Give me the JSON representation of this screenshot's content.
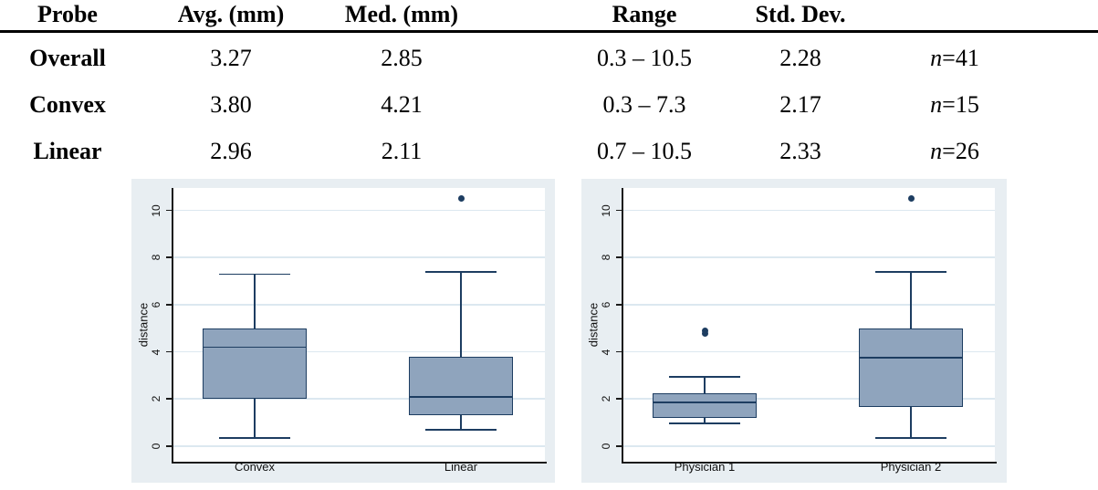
{
  "table": {
    "headers": {
      "probe": "Probe",
      "avg": "Avg. (mm)",
      "med": "Med. (mm)",
      "range": "Range",
      "std": "Std. Dev."
    },
    "rows": [
      {
        "probe": "Overall",
        "avg": "3.27",
        "med": "2.85",
        "range": "0.3 – 10.5",
        "std": "2.28",
        "n_var": "n",
        "n_eq": "=41"
      },
      {
        "probe": "Convex",
        "avg": "3.80",
        "med": "4.21",
        "range": "0.3 – 7.3",
        "std": "2.17",
        "n_var": "n",
        "n_eq": "=15"
      },
      {
        "probe": "Linear",
        "avg": "2.96",
        "med": "2.11",
        "range": "0.7 – 10.5",
        "std": "2.33",
        "n_var": "n",
        "n_eq": "=26"
      }
    ]
  },
  "chart_data": [
    {
      "type": "box",
      "title": "",
      "ylabel": "distance",
      "xlabel": "",
      "yticks": [
        0,
        2,
        4,
        6,
        8,
        10
      ],
      "ylim": [
        -0.7,
        11
      ],
      "grid": true,
      "categories": [
        "Convex",
        "Linear"
      ],
      "boxes": [
        {
          "category": "Convex",
          "whisker_low": 0.35,
          "q1": 2.0,
          "median": 4.2,
          "q3": 5.0,
          "whisker_high": 7.3,
          "outliers": []
        },
        {
          "category": "Linear",
          "whisker_low": 0.7,
          "q1": 1.3,
          "median": 2.1,
          "q3": 3.8,
          "whisker_high": 7.4,
          "outliers": [
            10.5
          ]
        }
      ]
    },
    {
      "type": "box",
      "title": "",
      "ylabel": "distance",
      "xlabel": "",
      "yticks": [
        0,
        2,
        4,
        6,
        8,
        10
      ],
      "ylim": [
        -0.7,
        11
      ],
      "grid": true,
      "categories": [
        "Physician 1",
        "Physician 2"
      ],
      "boxes": [
        {
          "category": "Physician 1",
          "whisker_low": 0.95,
          "q1": 1.2,
          "median": 1.85,
          "q3": 2.25,
          "whisker_high": 2.95,
          "outliers": [
            4.8,
            4.9
          ]
        },
        {
          "category": "Physician 2",
          "whisker_low": 0.35,
          "q1": 1.65,
          "median": 3.75,
          "q3": 5.0,
          "whisker_high": 7.4,
          "outliers": [
            10.5
          ]
        }
      ]
    }
  ],
  "colors": {
    "figure_bg": "#e8eef2",
    "plot_bg": "#ffffff",
    "gridline": "#dce8f0",
    "box_fill": "#8fa4bd",
    "box_border": "#1d3d61",
    "axis": "#1a1a1a",
    "text": "#111111"
  }
}
